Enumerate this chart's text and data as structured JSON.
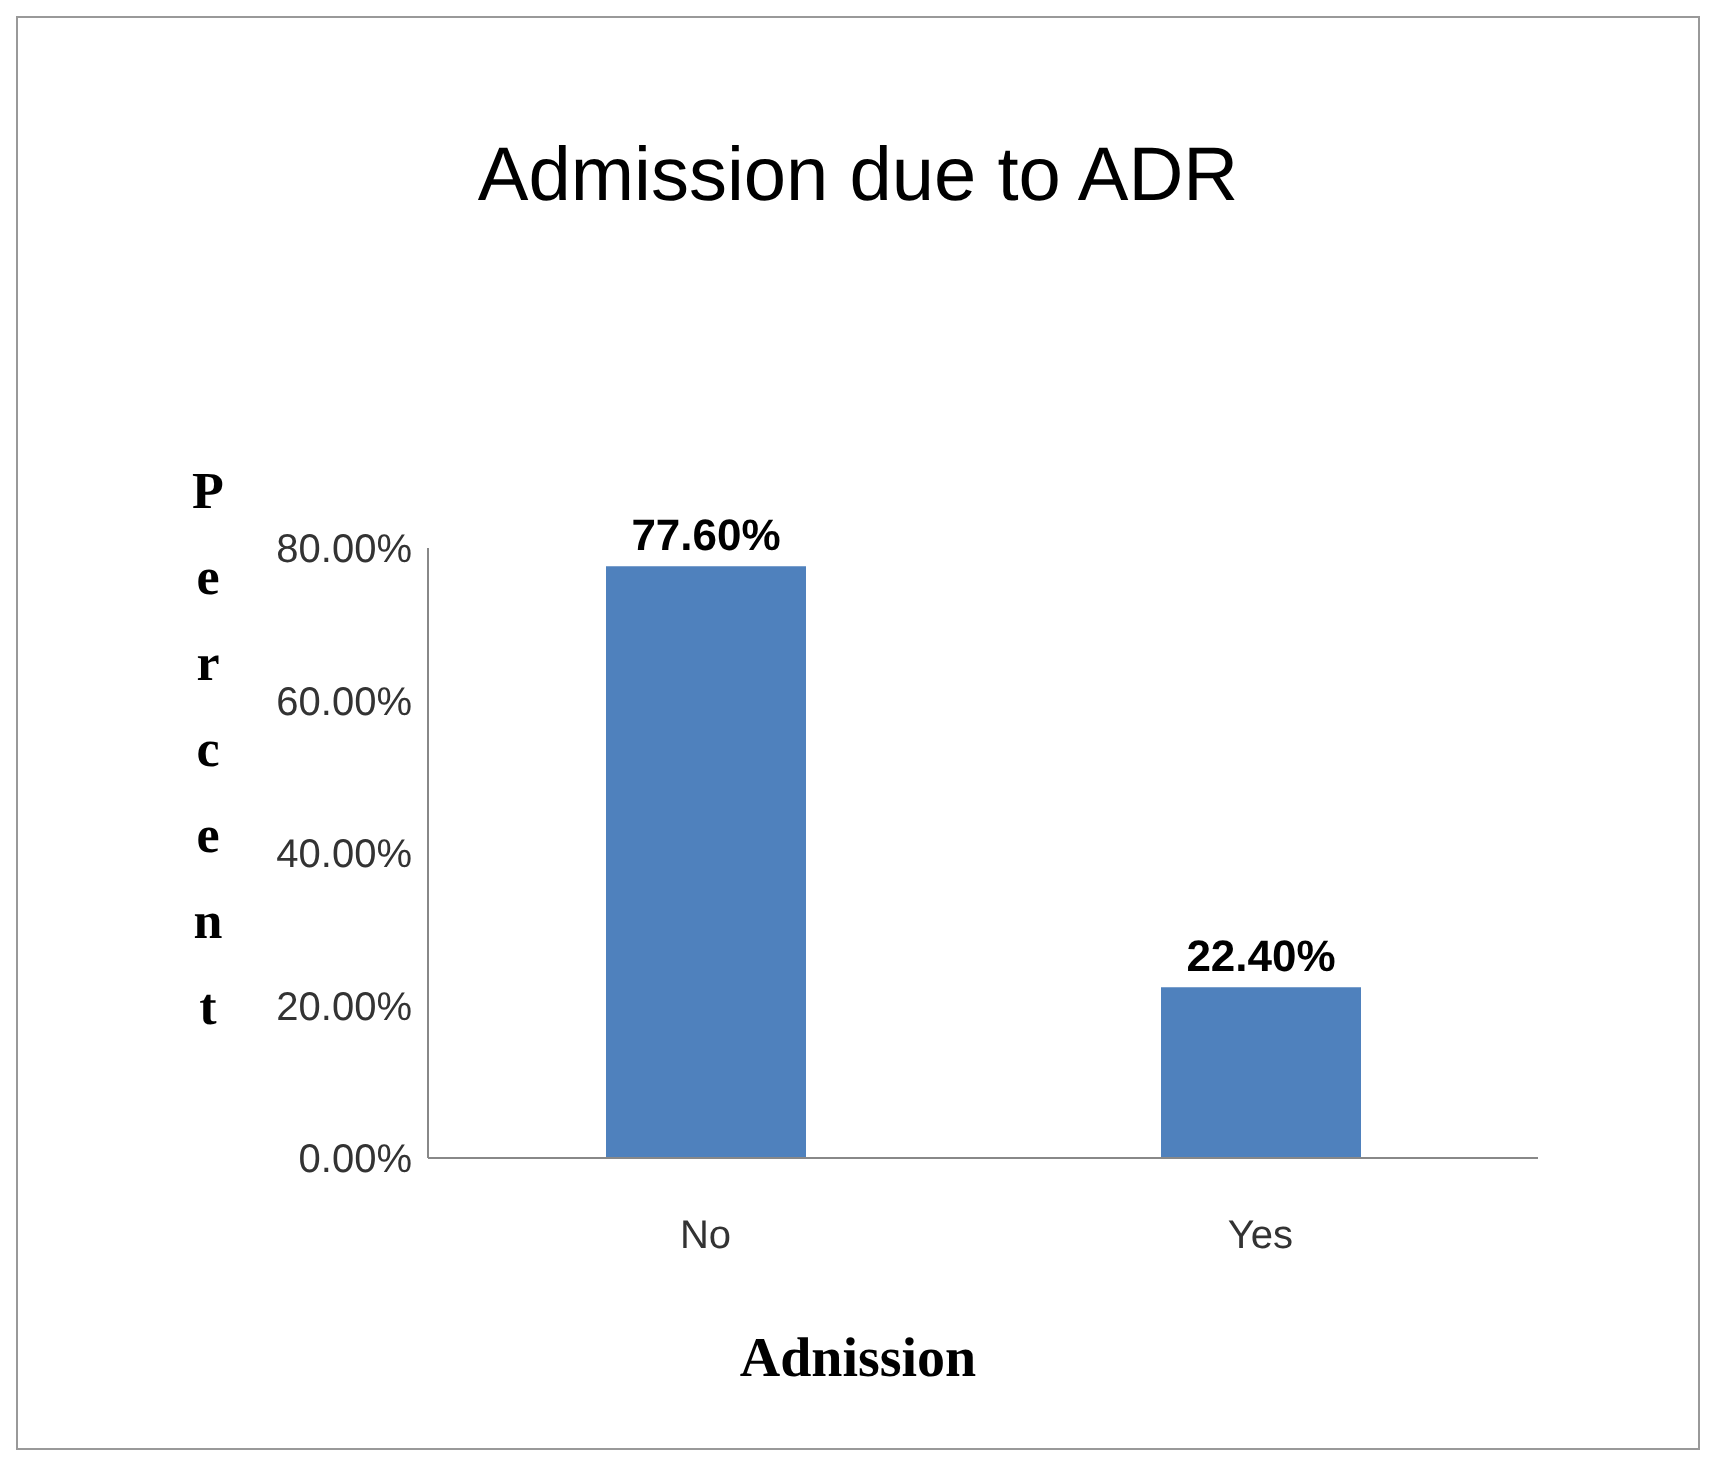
{
  "chart_data": {
    "type": "bar",
    "title": "Admission due to ADR",
    "xlabel": "Adnission",
    "ylabel": "Percent",
    "categories": [
      "No",
      "Yes"
    ],
    "values": [
      77.6,
      22.4
    ],
    "value_labels": [
      "77.60%",
      "22.40%"
    ],
    "color": "#4f81bd",
    "ylim": [
      0,
      80
    ],
    "yticks": [
      {
        "value": 0,
        "label": "0.00%"
      },
      {
        "value": 20,
        "label": "20.00%"
      },
      {
        "value": 40,
        "label": "40.00%"
      },
      {
        "value": 60,
        "label": "60.00%"
      },
      {
        "value": 80,
        "label": "80.00%"
      }
    ],
    "grid": false,
    "legend": false
  }
}
